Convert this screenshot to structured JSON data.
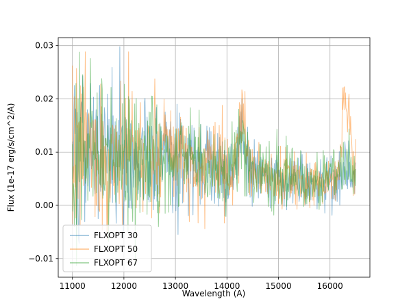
{
  "figure": {
    "background": "#ffffff"
  },
  "chart_data": {
    "type": "line",
    "title": "",
    "xlabel": "Wavelength (A)",
    "ylabel": "Flux (1e-17 erg/s/cm^2/A)",
    "xlim": [
      10725,
      16775
    ],
    "ylim": [
      -0.0135,
      0.0315
    ],
    "x_ticks": [
      11000,
      12000,
      13000,
      14000,
      15000,
      16000
    ],
    "x_tick_labels": [
      "11000",
      "12000",
      "13000",
      "14000",
      "15000",
      "16000"
    ],
    "y_ticks": [
      -0.01,
      0,
      0.01,
      0.02,
      0.03
    ],
    "y_tick_labels": [
      "−0.01",
      "0.00",
      "0.01",
      "0.02",
      "0.03"
    ],
    "grid": true,
    "grid_color": "#b0b0b0",
    "legend": {
      "position": "lower left",
      "entries": [
        "FLXOPT 30",
        "FLXOPT 50",
        "FLXOPT 67"
      ]
    },
    "sampling": {
      "x_start": 11000,
      "x_end": 16500,
      "x_step": 10
    },
    "baseline": [
      [
        11000,
        0.0105
      ],
      [
        11500,
        0.01
      ],
      [
        12000,
        0.0095
      ],
      [
        12500,
        0.009
      ],
      [
        13000,
        0.0085
      ],
      [
        13500,
        0.008
      ],
      [
        14000,
        0.007
      ],
      [
        14600,
        0.006
      ],
      [
        15000,
        0.005
      ],
      [
        15600,
        0.0048
      ],
      [
        16000,
        0.005
      ],
      [
        16500,
        0.006
      ]
    ],
    "noise_sigma": [
      [
        11000,
        0.008
      ],
      [
        11800,
        0.007
      ],
      [
        12600,
        0.0055
      ],
      [
        13400,
        0.0042
      ],
      [
        14200,
        0.0035
      ],
      [
        15000,
        0.0027
      ],
      [
        15800,
        0.0025
      ],
      [
        16500,
        0.0028
      ]
    ],
    "value_clip": [
      -0.0125,
      0.0298
    ],
    "series": [
      {
        "name": "FLXOPT 30",
        "color": "#1f77b4",
        "opacity": 0.5,
        "seed": 101,
        "peaks": [
          {
            "center": 14290,
            "width": 55,
            "amp": 0.01
          },
          {
            "center": 16320,
            "width": 70,
            "amp": 0.002
          }
        ]
      },
      {
        "name": "FLXOPT 50",
        "color": "#ff7f0e",
        "opacity": 0.5,
        "seed": 202,
        "peaks": [
          {
            "center": 14300,
            "width": 55,
            "amp": 0.012
          },
          {
            "center": 16310,
            "width": 70,
            "amp": 0.015
          }
        ]
      },
      {
        "name": "FLXOPT 67",
        "color": "#2ca02c",
        "opacity": 0.5,
        "seed": 303,
        "peaks": [
          {
            "center": 14300,
            "width": 55,
            "amp": 0.009
          },
          {
            "center": 16350,
            "width": 55,
            "amp": 0.004
          }
        ]
      }
    ]
  }
}
